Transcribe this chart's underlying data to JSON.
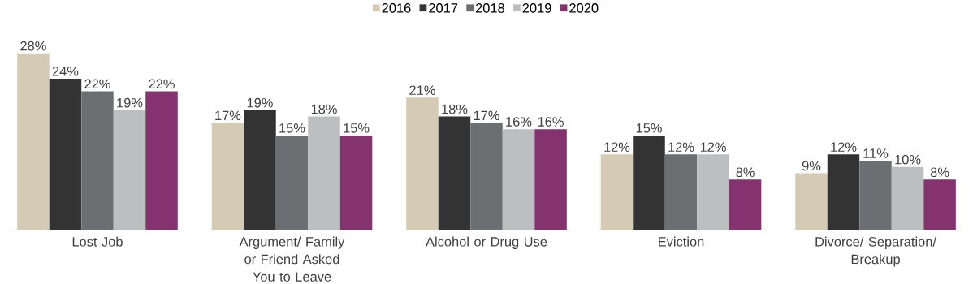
{
  "chart_data": {
    "type": "bar",
    "categories": [
      "Lost Job",
      "Argument/ Family or Friend Asked You to Leave",
      "Alcohol or Drug Use",
      "Eviction",
      "Divorce/ Separation/ Breakup"
    ],
    "series": [
      {
        "name": "2016",
        "color": "#d5cbb5",
        "values": [
          28,
          17,
          21,
          12,
          9
        ],
        "value_labels": [
          "28%",
          "17%",
          "21%",
          "12%",
          "9%"
        ]
      },
      {
        "name": "2017",
        "color": "#333333",
        "values": [
          24,
          19,
          18,
          15,
          12
        ],
        "value_labels": [
          "24%",
          "19%",
          "18%",
          "15%",
          "12%"
        ]
      },
      {
        "name": "2018",
        "color": "#6d6e71",
        "values": [
          22,
          15,
          17,
          12,
          11
        ],
        "value_labels": [
          "22%",
          "15%",
          "17%",
          "12%",
          "11%"
        ]
      },
      {
        "name": "2019",
        "color": "#bdbec0",
        "values": [
          19,
          18,
          16,
          12,
          10
        ],
        "value_labels": [
          "19%",
          "18%",
          "16%",
          "12%",
          "10%"
        ]
      },
      {
        "name": "2020",
        "color": "#85336f",
        "values": [
          22,
          15,
          16,
          8,
          8
        ],
        "value_labels": [
          "22%",
          "15%",
          "16%",
          "8%",
          "8%"
        ]
      }
    ],
    "legend": "top"
  }
}
